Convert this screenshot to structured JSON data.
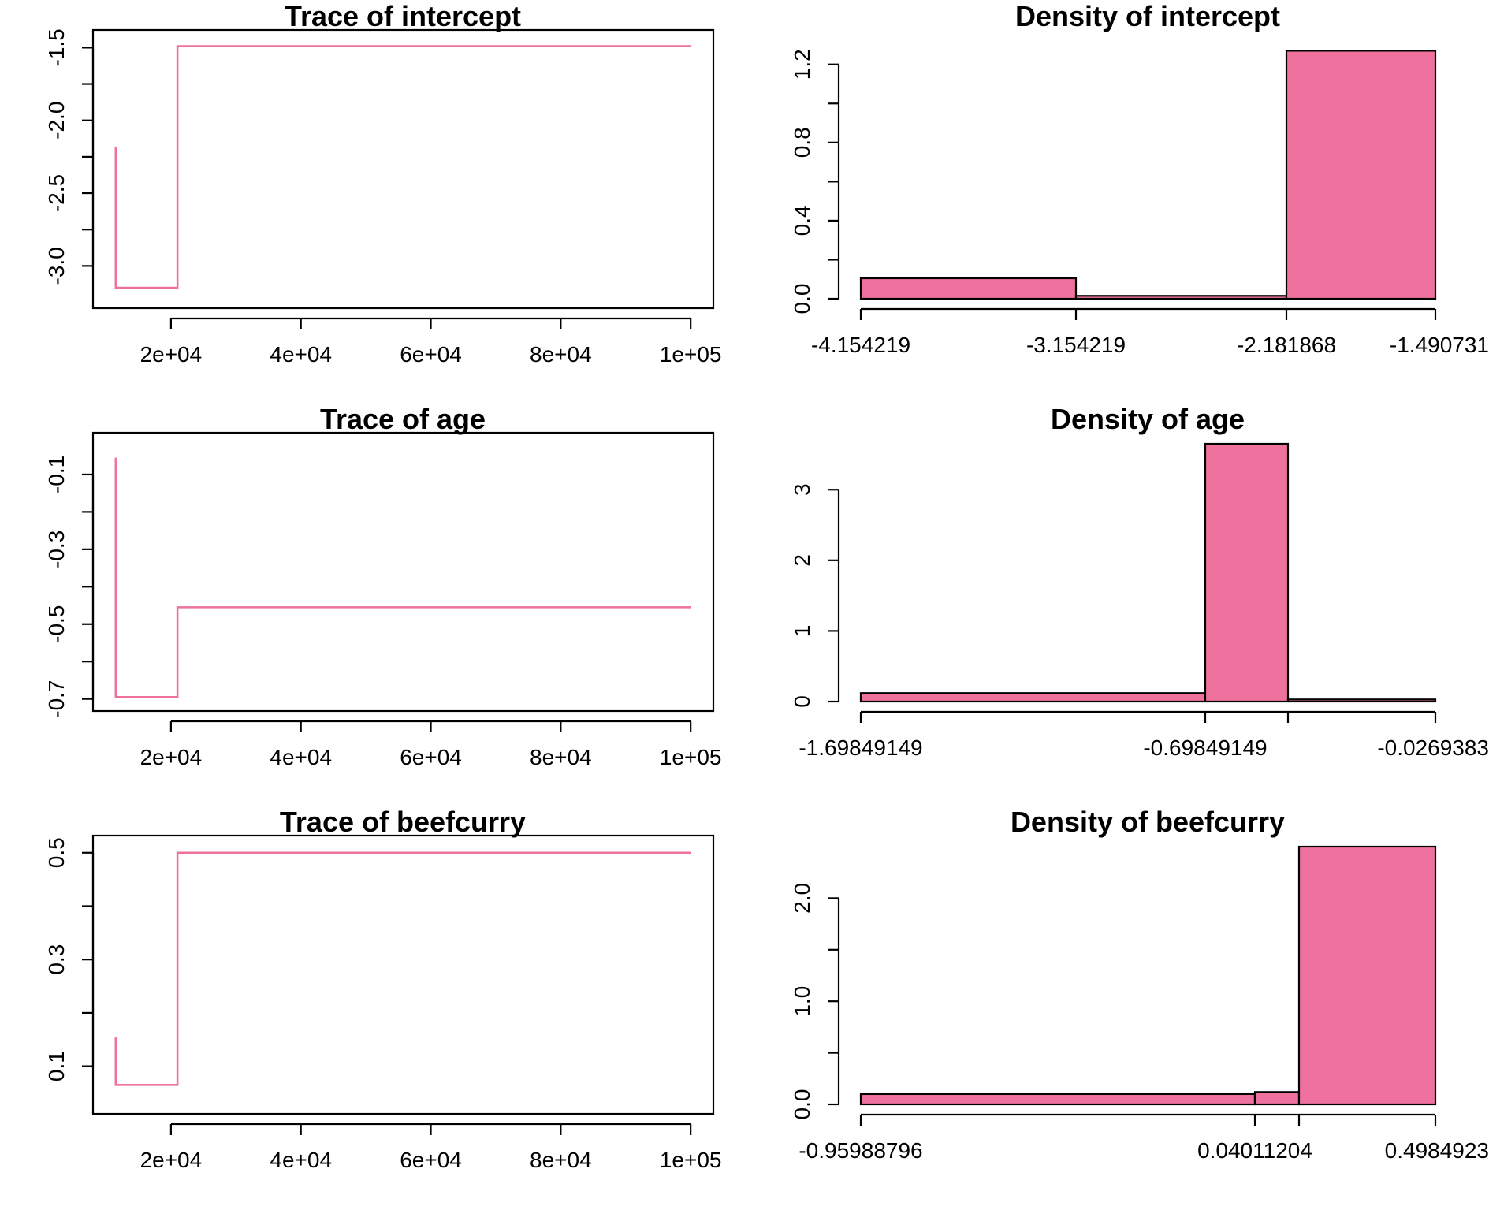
{
  "colors": {
    "series": "#EE719E",
    "axis": "#000000",
    "background": "#FFFFFF"
  },
  "chart_data": [
    {
      "type": "line",
      "title": "Trace of intercept",
      "xlabel": "",
      "ylabel": "",
      "xlim": [
        8000,
        103500
      ],
      "ylim": [
        -3.22,
        -1.46
      ],
      "xticks": [
        20000,
        40000,
        60000,
        80000,
        100000
      ],
      "xtick_labels": [
        "2e+04",
        "4e+04",
        "6e+04",
        "8e+04",
        "1e+05"
      ],
      "yticks": [
        -3.0,
        -2.5,
        -2.0,
        -1.5
      ],
      "ytick_labels": [
        "-3.0",
        "-2.5",
        "-2.0",
        "-1.5"
      ],
      "yminor": [
        -2.75,
        -2.25,
        -1.75
      ],
      "x": [
        11500,
        11500,
        21000,
        21000,
        100000
      ],
      "y": [
        -2.18,
        -3.15,
        -3.15,
        -1.49,
        -1.49
      ]
    },
    {
      "type": "bar",
      "title": "Density of intercept",
      "xlabel": "",
      "ylabel": "",
      "ylim": [
        0,
        1.32
      ],
      "bins": [
        [
          -4.154219,
          -3.154219
        ],
        [
          -3.154219,
          -2.181868
        ],
        [
          -2.181868,
          -1.490731
        ]
      ],
      "values": [
        0.105,
        0.015,
        1.27
      ],
      "xtick_labels": [
        "-4.154219",
        "-3.154219",
        "-2.181868",
        "-1.490731"
      ],
      "yticks": [
        0.0,
        0.4,
        0.8,
        1.2
      ],
      "ytick_labels": [
        "0.0",
        "0.4",
        "0.8",
        "1.2"
      ],
      "yminor": [
        0.2,
        0.6,
        1.0
      ]
    },
    {
      "type": "line",
      "title": "Trace of age",
      "xlabel": "",
      "ylabel": "",
      "xlim": [
        8000,
        103500
      ],
      "ylim": [
        -0.705,
        -0.02
      ],
      "xticks": [
        20000,
        40000,
        60000,
        80000,
        100000
      ],
      "xtick_labels": [
        "2e+04",
        "4e+04",
        "6e+04",
        "8e+04",
        "1e+05"
      ],
      "yticks": [
        -0.7,
        -0.5,
        -0.3,
        -0.1
      ],
      "ytick_labels": [
        "-0.7",
        "-0.5",
        "-0.3",
        "-0.1"
      ],
      "yminor": [
        -0.6,
        -0.4,
        -0.2
      ],
      "x": [
        11500,
        11500,
        21000,
        21000,
        100000
      ],
      "y": [
        -0.055,
        -0.695,
        -0.695,
        -0.455,
        -0.455
      ]
    },
    {
      "type": "bar",
      "title": "Density of age",
      "xlabel": "",
      "ylabel": "",
      "ylim": [
        0,
        3.65
      ],
      "bins": [
        [
          -1.69849149,
          -0.69849149
        ],
        [
          -0.69849149,
          -0.45
        ],
        [
          -0.45,
          -0.0269383
        ]
      ],
      "values": [
        0.12,
        3.65,
        0.03
      ],
      "xtick_labels": [
        "-1.69849149",
        "-0.69849149",
        "-0.0269383"
      ],
      "xtick_values": [
        -1.69849149,
        -0.69849149,
        -0.45,
        -0.0269383
      ],
      "yticks": [
        0,
        1,
        2,
        3
      ],
      "ytick_labels": [
        "0",
        "1",
        "2",
        "3"
      ],
      "yminor": []
    },
    {
      "type": "line",
      "title": "Trace of beefcurry",
      "xlabel": "",
      "ylabel": "",
      "xlim": [
        8000,
        103500
      ],
      "ylim": [
        0.03,
        0.51
      ],
      "xticks": [
        20000,
        40000,
        60000,
        80000,
        100000
      ],
      "xtick_labels": [
        "2e+04",
        "4e+04",
        "6e+04",
        "8e+04",
        "1e+05"
      ],
      "yticks": [
        0.1,
        0.3,
        0.5
      ],
      "ytick_labels": [
        "0.1",
        "0.3",
        "0.5"
      ],
      "yminor": [
        0.2,
        0.4
      ],
      "x": [
        11500,
        11500,
        21000,
        21000,
        100000
      ],
      "y": [
        0.155,
        0.065,
        0.065,
        0.5,
        0.5
      ]
    },
    {
      "type": "bar",
      "title": "Density of beefcurry",
      "xlabel": "",
      "ylabel": "",
      "ylim": [
        0,
        2.5
      ],
      "bins": [
        [
          -0.95988796,
          0.04011204
        ],
        [
          0.04011204,
          0.15
        ],
        [
          0.15,
          0.4984923
        ]
      ],
      "values": [
        0.1,
        0.12,
        2.5
      ],
      "xtick_labels": [
        "-0.95988796",
        "0.04011204",
        "0.4984923"
      ],
      "xtick_values": [
        -0.95988796,
        0.04011204,
        0.15,
        0.4984923
      ],
      "yticks": [
        0.0,
        1.0,
        2.0
      ],
      "ytick_labels": [
        "0.0",
        "1.0",
        "2.0"
      ],
      "yminor": [
        0.5,
        1.5
      ]
    }
  ]
}
